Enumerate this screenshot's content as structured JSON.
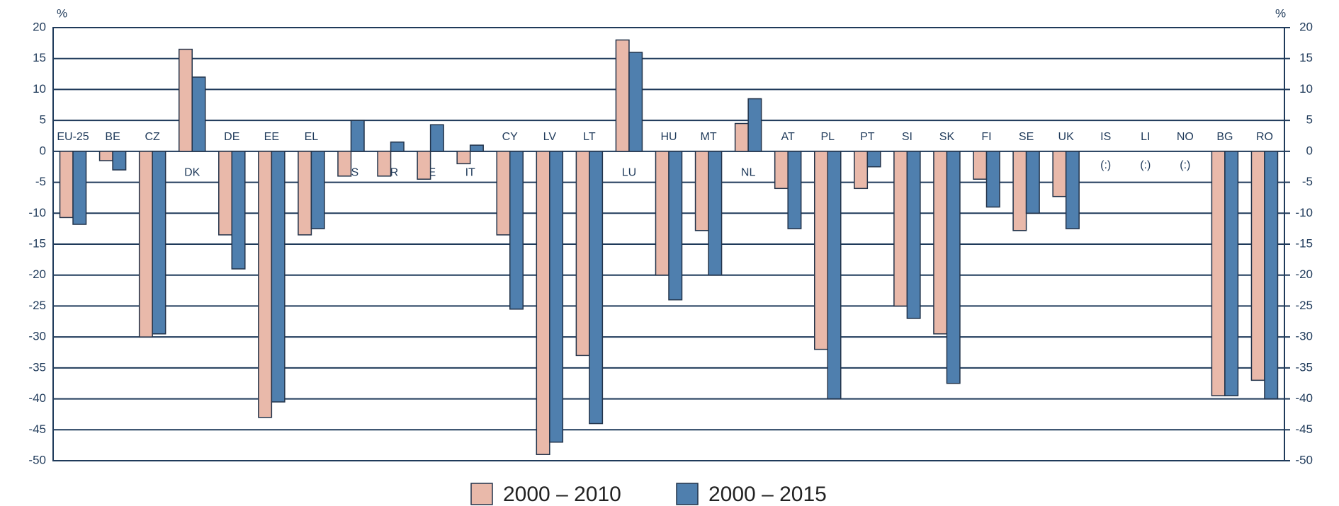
{
  "chart_data": {
    "type": "bar",
    "y_axis_label": "%",
    "y2_axis_label": "%",
    "categories": [
      "EU-25",
      "BE",
      "CZ",
      "DK",
      "DE",
      "EE",
      "EL",
      "ES",
      "FR",
      "IE",
      "IT",
      "CY",
      "LV",
      "LT",
      "LU",
      "HU",
      "MT",
      "NL",
      "AT",
      "PL",
      "PT",
      "SI",
      "SK",
      "FI",
      "SE",
      "UK",
      "IS",
      "LI",
      "NO",
      "BG",
      "RO"
    ],
    "series": [
      {
        "name": "2000 – 2010",
        "color": "#e9b9aa",
        "values": [
          -10.7,
          -1.5,
          -30,
          16.5,
          -13.5,
          -43,
          -13.5,
          -4,
          -4,
          -4.5,
          -2,
          -13.5,
          -49,
          -33,
          18,
          -20,
          -12.8,
          4.5,
          -6,
          -32,
          -6,
          -25,
          -29.5,
          -4.5,
          -12.8,
          -7.3,
          null,
          null,
          null,
          -39.5,
          -37
        ]
      },
      {
        "name": "2000 – 2015",
        "color": "#4f7fae",
        "values": [
          -11.8,
          -3,
          -29.5,
          12,
          -19,
          -40.5,
          -12.5,
          5,
          1.5,
          4.3,
          1,
          -25.5,
          -47,
          -44,
          16,
          -24,
          -20,
          8.5,
          -12.5,
          -40,
          -2.5,
          -27,
          -37.5,
          -9,
          -10,
          -12.5,
          null,
          null,
          null,
          -39.5,
          -40
        ]
      }
    ],
    "no_data_label": "(:)",
    "ylim": [
      -50,
      20
    ],
    "yticks": [
      -50,
      -45,
      -40,
      -35,
      -30,
      -25,
      -20,
      -15,
      -10,
      -5,
      0,
      5,
      10,
      15,
      20
    ],
    "y2lim": [
      -50,
      20
    ],
    "y2ticks": [
      -50,
      -45,
      -40,
      -35,
      -30,
      -25,
      -20,
      -15,
      -10,
      -5,
      0,
      5,
      10,
      15,
      20
    ],
    "grid": true,
    "legend": "bottom"
  }
}
